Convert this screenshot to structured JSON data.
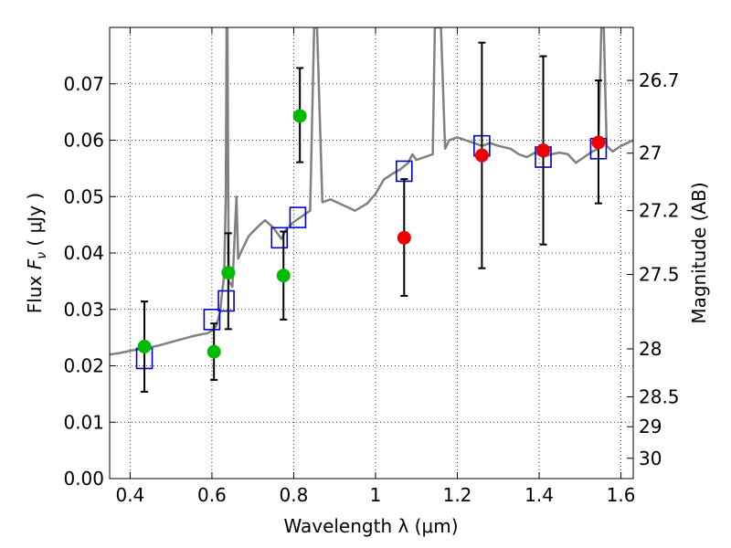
{
  "chart_data": {
    "type": "scatter",
    "title": "",
    "xlabel": "Wavelength  λ (μm)",
    "ylabel_prefix": "Flux  ",
    "ylabel_var": "F",
    "ylabel_sub": "ν",
    "ylabel_unit": "  ( μJy )",
    "y2label": "Magnitude (AB)",
    "xlim": [
      0.35,
      1.63
    ],
    "ylim": [
      0.0,
      0.08
    ],
    "grid": true,
    "x_ticks": [
      {
        "value": 0.4,
        "label": "0.4"
      },
      {
        "value": 0.6,
        "label": "0.6"
      },
      {
        "value": 0.8,
        "label": "0.8"
      },
      {
        "value": 1.0,
        "label": "1"
      },
      {
        "value": 1.2,
        "label": "1.2"
      },
      {
        "value": 1.4,
        "label": "1.4"
      },
      {
        "value": 1.6,
        "label": "1.6"
      }
    ],
    "y_ticks": [
      {
        "value": 0.0,
        "label": "0.00"
      },
      {
        "value": 0.01,
        "label": "0.01"
      },
      {
        "value": 0.02,
        "label": "0.02"
      },
      {
        "value": 0.03,
        "label": "0.03"
      },
      {
        "value": 0.04,
        "label": "0.04"
      },
      {
        "value": 0.05,
        "label": "0.05"
      },
      {
        "value": 0.06,
        "label": "0.06"
      },
      {
        "value": 0.07,
        "label": "0.07"
      }
    ],
    "y2_ticks": [
      {
        "flux": 0.0706,
        "label": "26.7"
      },
      {
        "flux": 0.0577,
        "label": "27"
      },
      {
        "flux": 0.0475,
        "label": "27.2"
      },
      {
        "flux": 0.0362,
        "label": "27.5"
      },
      {
        "flux": 0.023,
        "label": "28"
      },
      {
        "flux": 0.0145,
        "label": "28.5"
      },
      {
        "flux": 0.0092,
        "label": "29"
      },
      {
        "flux": 0.0036,
        "label": "30"
      }
    ],
    "model_spectrum": {
      "color": "#808080",
      "points": [
        [
          0.35,
          0.022
        ],
        [
          0.37,
          0.0222
        ],
        [
          0.39,
          0.0225
        ],
        [
          0.41,
          0.0228
        ],
        [
          0.43,
          0.023
        ],
        [
          0.45,
          0.0233
        ],
        [
          0.47,
          0.0236
        ],
        [
          0.49,
          0.024
        ],
        [
          0.51,
          0.0244
        ],
        [
          0.53,
          0.0248
        ],
        [
          0.55,
          0.0252
        ],
        [
          0.57,
          0.0255
        ],
        [
          0.59,
          0.0258
        ],
        [
          0.6,
          0.0262
        ],
        [
          0.61,
          0.027
        ],
        [
          0.62,
          0.0295
        ],
        [
          0.625,
          0.033
        ],
        [
          0.63,
          0.036
        ],
        [
          0.634,
          0.05
        ],
        [
          0.636,
          0.08
        ],
        [
          0.638,
          0.08
        ],
        [
          0.641,
          0.035
        ],
        [
          0.65,
          0.034
        ],
        [
          0.66,
          0.05
        ],
        [
          0.664,
          0.039
        ],
        [
          0.67,
          0.04
        ],
        [
          0.68,
          0.0415
        ],
        [
          0.69,
          0.043
        ],
        [
          0.71,
          0.0445
        ],
        [
          0.73,
          0.0458
        ],
        [
          0.75,
          0.0445
        ],
        [
          0.77,
          0.0425
        ],
        [
          0.78,
          0.044
        ],
        [
          0.8,
          0.0455
        ],
        [
          0.84,
          0.0475
        ],
        [
          0.85,
          0.08
        ],
        [
          0.857,
          0.08
        ],
        [
          0.87,
          0.049
        ],
        [
          0.89,
          0.0495
        ],
        [
          0.92,
          0.0485
        ],
        [
          0.95,
          0.0475
        ],
        [
          0.98,
          0.0488
        ],
        [
          1.0,
          0.0505
        ],
        [
          1.02,
          0.053
        ],
        [
          1.04,
          0.054
        ],
        [
          1.06,
          0.0548
        ],
        [
          1.08,
          0.056
        ],
        [
          1.09,
          0.0575
        ],
        [
          1.1,
          0.0565
        ],
        [
          1.12,
          0.057
        ],
        [
          1.14,
          0.0575
        ],
        [
          1.145,
          0.08
        ],
        [
          1.16,
          0.08
        ],
        [
          1.17,
          0.0585
        ],
        [
          1.18,
          0.06
        ],
        [
          1.2,
          0.0605
        ],
        [
          1.22,
          0.06
        ],
        [
          1.24,
          0.0595
        ],
        [
          1.26,
          0.059
        ],
        [
          1.28,
          0.0595
        ],
        [
          1.3,
          0.059
        ],
        [
          1.33,
          0.0585
        ],
        [
          1.35,
          0.0575
        ],
        [
          1.37,
          0.057
        ],
        [
          1.39,
          0.0578
        ],
        [
          1.41,
          0.057
        ],
        [
          1.43,
          0.0575
        ],
        [
          1.45,
          0.0578
        ],
        [
          1.47,
          0.0575
        ],
        [
          1.49,
          0.056
        ],
        [
          1.51,
          0.057
        ],
        [
          1.53,
          0.058
        ],
        [
          1.545,
          0.0585
        ],
        [
          1.552,
          0.08
        ],
        [
          1.558,
          0.08
        ],
        [
          1.565,
          0.059
        ],
        [
          1.58,
          0.058
        ],
        [
          1.6,
          0.059
        ],
        [
          1.63,
          0.06
        ]
      ]
    },
    "series": [
      {
        "marker": "open-square",
        "color": "#0000cc",
        "x": [
          0.435,
          0.6,
          0.635,
          0.765,
          0.81,
          1.07,
          1.26,
          1.41,
          1.545
        ],
        "y": [
          0.0213,
          0.0282,
          0.0315,
          0.0427,
          0.0463,
          0.0545,
          0.059,
          0.057,
          0.0585
        ]
      },
      {
        "marker": "filled-circle",
        "color": "#00bb00",
        "x": [
          0.435,
          0.605,
          0.64,
          0.775,
          0.815
        ],
        "y": [
          0.0234,
          0.0225,
          0.0365,
          0.036,
          0.0643
        ],
        "err_low": [
          0.008,
          0.005,
          0.01,
          0.0078,
          0.0082
        ],
        "err_high": [
          0.008,
          0.005,
          0.007,
          0.0078,
          0.0085
        ]
      },
      {
        "marker": "filled-circle",
        "color": "#ee0000",
        "x": [
          1.07,
          1.26,
          1.41,
          1.545
        ],
        "y": [
          0.0427,
          0.0573,
          0.0582,
          0.0596
        ],
        "err_low": [
          0.0103,
          0.02,
          0.0167,
          0.0108
        ],
        "err_high": [
          0.0104,
          0.02,
          0.0167,
          0.011
        ]
      }
    ]
  }
}
